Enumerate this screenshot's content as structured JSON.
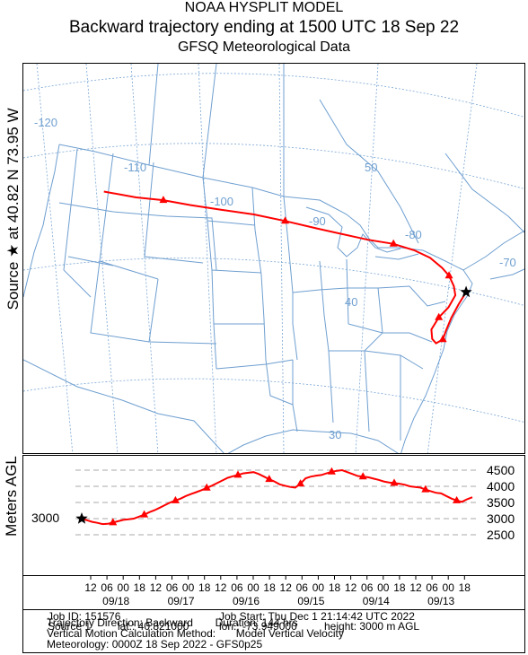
{
  "header": {
    "line1": "NOAA HYSPLIT MODEL",
    "line2": "Backward trajectory ending at 1500 UTC 18 Sep 22",
    "line3": "GFSQ Meteorological Data"
  },
  "source_label": "Source ★ at  40.82 N  73.95 W",
  "map": {
    "trajectory_color": "#ff0000",
    "boundary_color": "#6699cc",
    "source_marker": "star-icon",
    "lon_labels": [
      "-120",
      "-110",
      "-100",
      "-90",
      "-80",
      "-70"
    ],
    "lat_labels": [
      "50",
      "40",
      "30"
    ],
    "trajectory_lonlat": [
      [
        -73.95,
        40.82
      ],
      [
        -74.6,
        39.8
      ],
      [
        -75.2,
        38.7
      ],
      [
        -75.6,
        37.6
      ],
      [
        -75.8,
        36.9
      ],
      [
        -76.6,
        36.6
      ],
      [
        -77.2,
        37.0
      ],
      [
        -77.5,
        37.8
      ],
      [
        -76.8,
        38.8
      ],
      [
        -75.8,
        39.6
      ],
      [
        -75.2,
        40.6
      ],
      [
        -75.6,
        41.4
      ],
      [
        -76.4,
        42.3
      ],
      [
        -77.4,
        43.0
      ],
      [
        -79.0,
        43.9
      ],
      [
        -81.0,
        44.6
      ],
      [
        -83.5,
        45.2
      ],
      [
        -86.5,
        45.6
      ],
      [
        -89.5,
        46.1
      ],
      [
        -92.5,
        46.6
      ],
      [
        -96.0,
        47.2
      ],
      [
        -99.5,
        47.7
      ],
      [
        -103.0,
        48.0
      ],
      [
        -106.5,
        48.3
      ],
      [
        -109.5,
        48.6
      ],
      [
        -112.5,
        48.7
      ],
      [
        -116.0,
        49.0
      ]
    ]
  },
  "height_panel": {
    "ylabel": "Meters AGL",
    "source_height": "3000",
    "ticks": [
      "4500",
      "4000",
      "3500",
      "3000",
      "2500"
    ],
    "tick_values": [
      4500,
      4000,
      3500,
      3000,
      2500
    ],
    "heights_m": [
      3000,
      2950,
      2900,
      2870,
      2830,
      2840,
      2880,
      2920,
      2960,
      2980,
      3000,
      3060,
      3120,
      3200,
      3260,
      3340,
      3420,
      3500,
      3560,
      3620,
      3700,
      3760,
      3820,
      3880,
      3950,
      4020,
      4100,
      4180,
      4260,
      4310,
      4350,
      4400,
      4420,
      4440,
      4380,
      4300,
      4220,
      4150,
      4060,
      4020,
      3980,
      3960,
      4080,
      4250,
      4300,
      4330,
      4350,
      4400,
      4450,
      4480,
      4500,
      4440,
      4380,
      4320,
      4300,
      4280,
      4240,
      4200,
      4150,
      4120,
      4100,
      4080,
      4050,
      4000,
      3980,
      3960,
      3900,
      3850,
      3800,
      3780,
      3700,
      3620,
      3560,
      3520,
      3600,
      3660
    ]
  },
  "time_axis": {
    "hours": [
      "12",
      "06",
      "00",
      "18",
      "12",
      "06",
      "00",
      "18",
      "12",
      "06",
      "00",
      "18",
      "12",
      "06",
      "00",
      "18",
      "12",
      "06",
      "00",
      "18",
      "12",
      "06",
      "00",
      "18"
    ],
    "dates": [
      "09/18",
      "09/17",
      "09/16",
      "09/15",
      "09/14",
      "09/13"
    ]
  },
  "info": {
    "job_id": "Job ID: 151576",
    "job_start": "Job Start: Thu Dec  1 21:14:42 UTC 2022",
    "source": "Source 1",
    "lat": "lat.: 40.821000",
    "lon": "lon.: -73.949000",
    "height": "height: 3000 m AGL",
    "direction": "Trajectory Direction: Backward",
    "duration": "Duration: 144 hrs",
    "vertical_label": "Vertical Motion Calculation Method:",
    "vertical_value": "Model Vertical Velocity",
    "meteorology": "Meteorology: 0000Z 18 Sep 2022 - GFS0p25"
  }
}
